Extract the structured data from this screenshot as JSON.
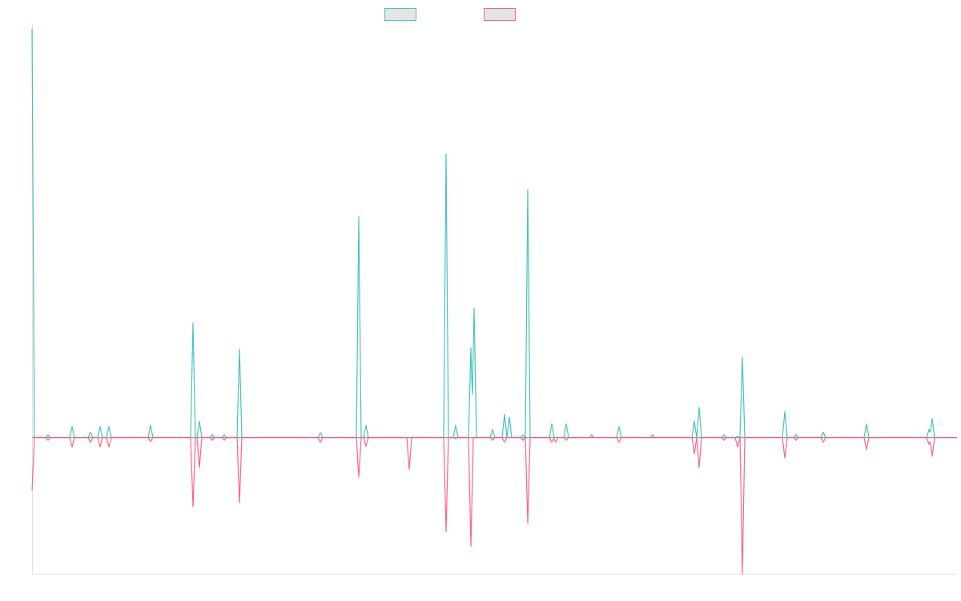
{
  "chart_data": {
    "type": "line",
    "title": "",
    "xlabel": "",
    "ylabel": "",
    "xlim": [
      0,
      577.5
    ],
    "ylim": [
      -1,
      3
    ],
    "grid": false,
    "legend": {
      "placement": "top-center",
      "entries": [
        {
          "label": "",
          "color": "#4bc0c0"
        },
        {
          "label": "",
          "color": "#ff6384"
        }
      ]
    },
    "series": [
      {
        "color": "#4bc0c0",
        "points": [
          [
            0,
            3.0
          ],
          [
            10,
            0.02
          ],
          [
            25,
            0.08
          ],
          [
            36.5,
            0.04
          ],
          [
            42.5,
            0.08
          ],
          [
            48,
            0.08
          ],
          [
            74,
            0.09
          ],
          [
            100.5,
            0.84
          ],
          [
            104.5,
            0.12
          ],
          [
            112.5,
            0.02
          ],
          [
            120,
            0.02
          ],
          [
            129.5,
            0.65
          ],
          [
            180,
            0.035
          ],
          [
            204,
            1.62
          ],
          [
            208.5,
            0.09
          ],
          [
            258.5,
            2.08
          ],
          [
            264.5,
            0.09
          ],
          [
            274,
            0.66
          ],
          [
            276,
            0.95
          ],
          [
            287.5,
            0.06
          ],
          [
            295,
            0.17
          ],
          [
            298,
            0.15
          ],
          [
            306.5,
            0.02
          ],
          [
            309.5,
            1.82
          ],
          [
            324.5,
            0.1
          ],
          [
            333.5,
            0.1
          ],
          [
            349.5,
            0.02
          ],
          [
            366.5,
            0.08
          ],
          [
            387.5,
            0.02
          ],
          [
            413.5,
            0.12
          ],
          [
            416.5,
            0.22
          ],
          [
            432,
            0.02
          ],
          [
            440.5,
            0.01
          ],
          [
            443.5,
            0.59
          ],
          [
            470,
            0.19
          ],
          [
            477,
            0.02
          ],
          [
            494,
            0.04
          ],
          [
            521,
            0.1
          ],
          [
            560,
            0.06
          ],
          [
            562,
            0.14
          ]
        ]
      },
      {
        "color": "#ff6384",
        "points": [
          [
            0,
            -0.39
          ],
          [
            10,
            -0.02
          ],
          [
            25,
            -0.07
          ],
          [
            36.5,
            -0.035
          ],
          [
            42.5,
            -0.07
          ],
          [
            48,
            -0.07
          ],
          [
            74,
            -0.03
          ],
          [
            100.5,
            -0.51
          ],
          [
            104.5,
            -0.22
          ],
          [
            112.5,
            -0.02
          ],
          [
            120,
            -0.02
          ],
          [
            129.5,
            -0.48
          ],
          [
            180,
            -0.035
          ],
          [
            204,
            -0.29
          ],
          [
            208.5,
            -0.065
          ],
          [
            235.5,
            -0.235
          ],
          [
            258.5,
            -0.69
          ],
          [
            264.5,
            -0.01
          ],
          [
            274,
            -0.8
          ],
          [
            287.5,
            -0.02
          ],
          [
            295,
            -0.035
          ],
          [
            306.5,
            -0.02
          ],
          [
            309.5,
            -0.63
          ],
          [
            324.5,
            -0.035
          ],
          [
            327,
            -0.035
          ],
          [
            333.5,
            -0.02
          ],
          [
            366.5,
            -0.035
          ],
          [
            413.5,
            -0.12
          ],
          [
            416.5,
            -0.22
          ],
          [
            432,
            -0.02
          ],
          [
            440.5,
            -0.07
          ],
          [
            443.5,
            -1.0
          ],
          [
            470,
            -0.15
          ],
          [
            477,
            -0.02
          ],
          [
            494,
            -0.035
          ],
          [
            521,
            -0.09
          ],
          [
            560,
            -0.05
          ],
          [
            562,
            -0.135
          ]
        ]
      }
    ]
  }
}
